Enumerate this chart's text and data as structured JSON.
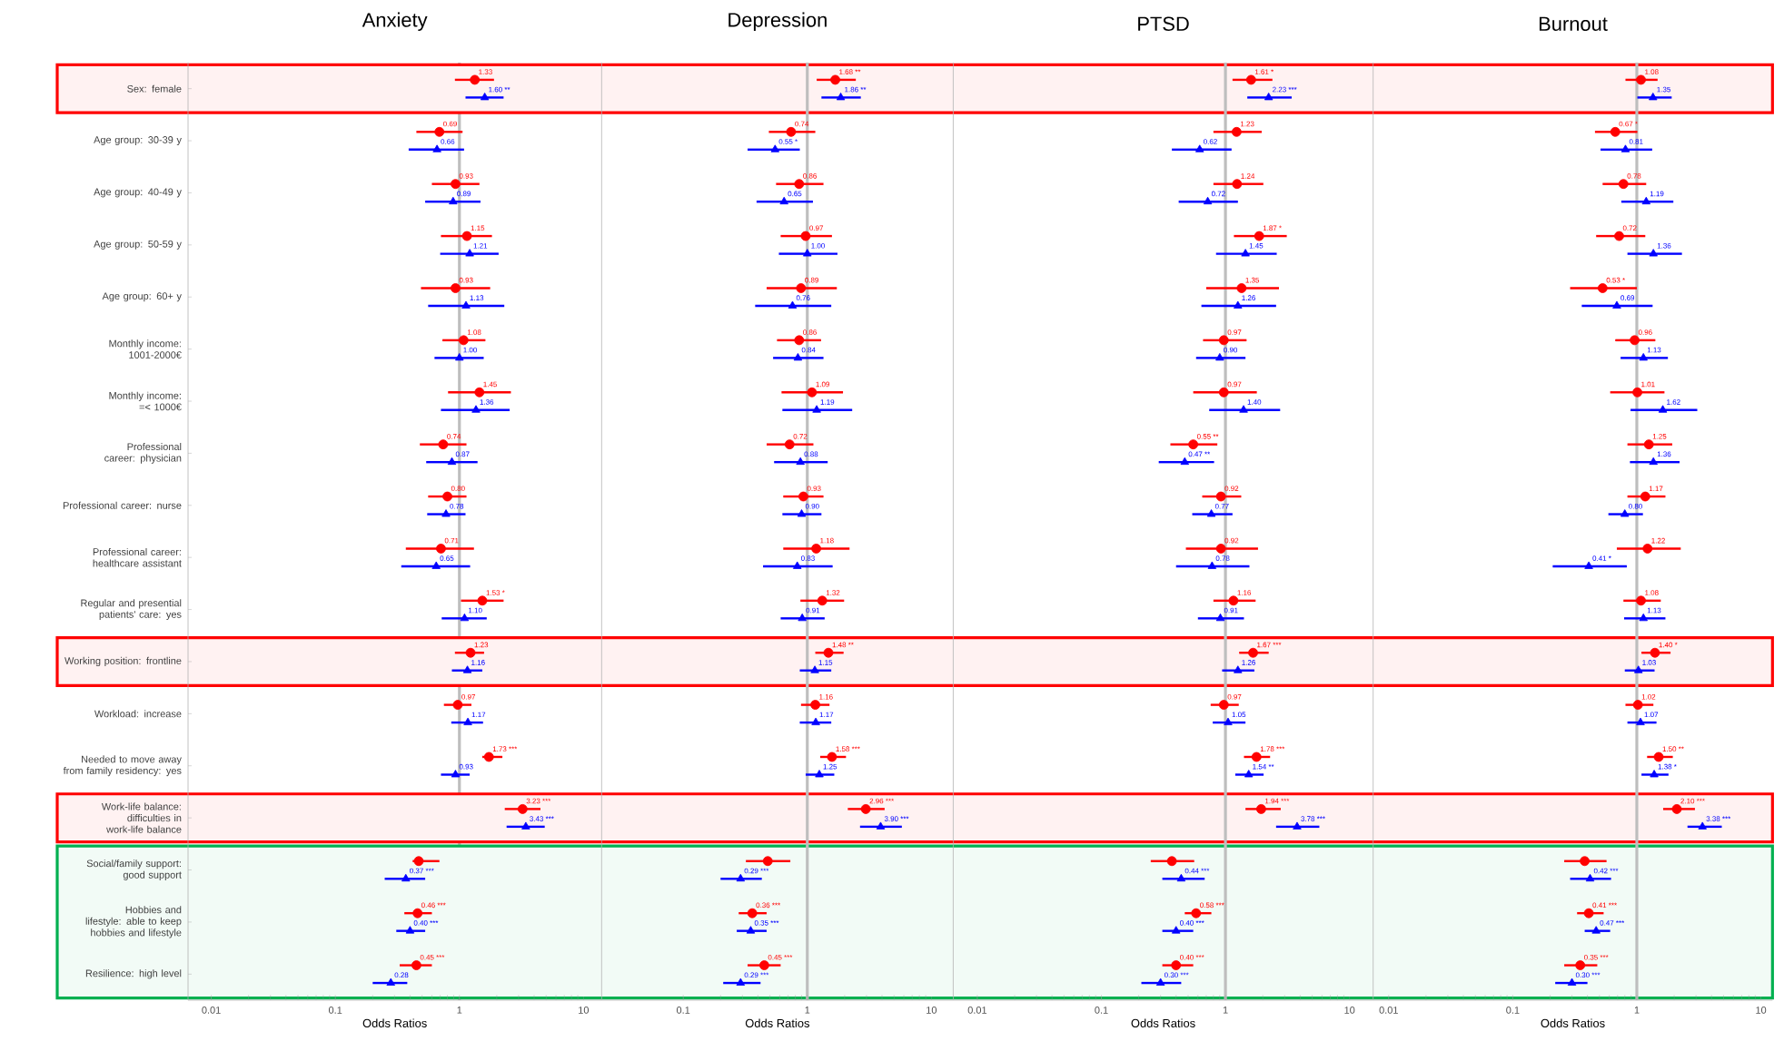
{
  "chart_data": [
    {
      "type": "scatter",
      "orientation": "horizontal",
      "title": "Anxiety",
      "xlabel": "Odds Ratios",
      "log": "x",
      "xlim": [
        0.0065,
        14
      ],
      "xticks": [
        0.01,
        0.1,
        1,
        10
      ],
      "categories": [
        "Sex: female",
        "Age group: 30-39 y",
        "Age group: 40-49 y",
        "Age group: 50-59 y",
        "Age group: 60+ y",
        "Monthly income: 1001-2000€",
        "Monthly income: =< 1000€",
        "Professional career: physician",
        "Professional career: nurse",
        "Professional career: healthcare assistant",
        "Regular and presential patients' care: yes",
        "Working position: frontline",
        "Workload: increase",
        "Needed to move away from family residency: yes",
        "Work-life balance: difficulties in work-life balance",
        "Social/family support: good support",
        "Hobbies and lifestyle: able to keep hobbies and lifestyle",
        "Resilience: high level"
      ],
      "ref_lines": [
        {
          "axis": "x",
          "value": 1,
          "color": "#bebebe"
        }
      ],
      "bands": [
        {
          "axis": "y",
          "from": "Sex: female",
          "to": "Sex: female",
          "color": "#ff0000"
        },
        {
          "axis": "y",
          "from": "Working position: frontline",
          "to": "Working position: frontline",
          "color": "#ff0000"
        },
        {
          "axis": "y",
          "from": "Work-life balance: difficulties in work-life balance",
          "to": "Work-life balance: difficulties in work-life balance",
          "color": "#ff0000"
        },
        {
          "axis": "y",
          "from": "Social/family support: good support",
          "to": "Resilience: high level",
          "color": "#00b050"
        }
      ],
      "series": [
        {
          "color": "#ff0000",
          "marker": "circle",
          "values": [
            1.33,
            0.69,
            0.93,
            1.15,
            0.93,
            1.08,
            1.45,
            0.74,
            0.8,
            0.71,
            1.53,
            1.23,
            0.97,
            1.73,
            3.23,
            0.47,
            0.46,
            0.45
          ],
          "errors": [
            [
              0.92,
              1.9
            ],
            [
              0.45,
              1.06
            ],
            [
              0.6,
              1.45
            ],
            [
              0.71,
              1.83
            ],
            [
              0.49,
              1.77
            ],
            [
              0.73,
              1.62
            ],
            [
              0.81,
              2.6
            ],
            [
              0.48,
              1.14
            ],
            [
              0.56,
              1.14
            ],
            [
              0.37,
              1.31
            ],
            [
              1.03,
              2.27
            ],
            [
              0.92,
              1.58
            ],
            [
              0.75,
              1.25
            ],
            [
              1.53,
              2.22
            ],
            [
              2.32,
              4.5
            ],
            [
              0.42,
              0.69
            ],
            [
              0.36,
              0.6
            ],
            [
              0.33,
              0.6
            ]
          ],
          "value_labels": [
            "1.33",
            "0.69",
            "0.93",
            "1.15",
            "0.93",
            "1.08",
            "1.45",
            "0.74",
            "0.80",
            "0.71",
            "1.53 *",
            "1.23",
            "0.97",
            "1.73 ***",
            "3.23 ***",
            null,
            "0.46 ***",
            "0.45 ***"
          ]
        },
        {
          "color": "#0000ff",
          "marker": "triangle",
          "values": [
            1.6,
            0.66,
            0.89,
            1.21,
            1.13,
            1.0,
            1.36,
            0.87,
            0.78,
            0.65,
            1.1,
            1.16,
            1.17,
            0.93,
            3.43,
            0.37,
            0.4,
            0.28
          ],
          "errors": [
            [
              1.12,
              2.27
            ],
            [
              0.39,
              1.09
            ],
            [
              0.53,
              1.48
            ],
            [
              0.7,
              2.07
            ],
            [
              0.56,
              2.3
            ],
            [
              0.63,
              1.57
            ],
            [
              0.71,
              2.54
            ],
            [
              0.54,
              1.4
            ],
            [
              0.55,
              1.12
            ],
            [
              0.34,
              1.22
            ],
            [
              0.72,
              1.66
            ],
            [
              0.87,
              1.53
            ],
            [
              0.86,
              1.55
            ],
            [
              0.71,
              1.21
            ],
            [
              2.4,
              4.87
            ],
            [
              0.25,
              0.53
            ],
            [
              0.31,
              0.53
            ],
            [
              0.2,
              0.38
            ]
          ],
          "value_labels": [
            "1.60 **",
            "0.66",
            "0.89",
            "1.21",
            "1.13",
            "1.00",
            "1.36",
            "0.87",
            "0.78",
            "0.65",
            "1.10",
            "1.16",
            "1.17",
            "0.93",
            "3.43 ***",
            "0.37 ***",
            "0.40 ***",
            "0.28"
          ]
        }
      ]
    },
    {
      "type": "scatter",
      "orientation": "horizontal",
      "title": "Depression",
      "xlabel": "Odds Ratios",
      "log": "x",
      "xlim": [
        0.022,
        15
      ],
      "xticks": [
        0.1,
        1,
        10
      ],
      "tick_labels": "x",
      "categories": [
        null,
        null,
        null,
        null,
        null,
        null,
        null,
        null,
        null,
        null,
        null,
        null,
        null,
        null,
        null,
        null,
        null,
        null
      ],
      "ref_lines": [
        {
          "axis": "x",
          "value": 1,
          "color": "#bebebe"
        }
      ],
      "series": [
        {
          "color": "#ff0000",
          "marker": "circle",
          "values": [
            1.68,
            0.74,
            0.86,
            0.97,
            0.89,
            0.86,
            1.09,
            0.72,
            0.93,
            1.18,
            1.32,
            1.48,
            1.16,
            1.58,
            2.96,
            0.48,
            0.36,
            0.45
          ],
          "errors": [
            [
              1.19,
              2.46
            ],
            [
              0.49,
              1.16
            ],
            [
              0.56,
              1.35
            ],
            [
              0.61,
              1.58
            ],
            [
              0.47,
              1.73
            ],
            [
              0.57,
              1.29
            ],
            [
              0.62,
              1.94
            ],
            [
              0.47,
              1.12
            ],
            [
              0.64,
              1.35
            ],
            [
              0.64,
              2.19
            ],
            [
              0.88,
              1.98
            ],
            [
              1.16,
              1.96
            ],
            [
              0.89,
              1.51
            ],
            [
              1.27,
              2.05
            ],
            [
              2.12,
              4.2
            ],
            [
              0.32,
              0.73
            ],
            [
              0.28,
              0.47
            ],
            [
              0.33,
              0.61
            ]
          ],
          "value_labels": [
            "1.68 **",
            "0.74",
            "0.86",
            "0.97",
            "0.89",
            "0.86",
            "1.09",
            "0.72",
            "0.93",
            "1.18",
            "1.32",
            "1.48 **",
            "1.16",
            "1.58 ***",
            "2.96 ***",
            null,
            "0.36 ***",
            "0.45 ***"
          ]
        },
        {
          "color": "#0000ff",
          "marker": "triangle",
          "values": [
            1.86,
            0.55,
            0.65,
            1.0,
            0.76,
            0.84,
            1.19,
            0.88,
            0.9,
            0.83,
            0.91,
            1.15,
            1.17,
            1.25,
            3.9,
            0.29,
            0.35,
            0.29
          ],
          "errors": [
            [
              1.3,
              2.7
            ],
            [
              0.33,
              0.87
            ],
            [
              0.39,
              1.11
            ],
            [
              0.59,
              1.75
            ],
            [
              0.38,
              1.56
            ],
            [
              0.53,
              1.35
            ],
            [
              0.63,
              2.3
            ],
            [
              0.54,
              1.46
            ],
            [
              0.63,
              1.3
            ],
            [
              0.44,
              1.6
            ],
            [
              0.61,
              1.38
            ],
            [
              0.87,
              1.56
            ],
            [
              0.87,
              1.56
            ],
            [
              0.97,
              1.65
            ],
            [
              2.66,
              5.78
            ],
            [
              0.2,
              0.43
            ],
            [
              0.27,
              0.47
            ],
            [
              0.21,
              0.42
            ]
          ],
          "value_labels": [
            "1.86 **",
            "0.55 *",
            "0.65",
            "1.00",
            "0.76",
            "0.84",
            "1.19",
            "0.88",
            "0.90",
            "0.83",
            "0.91",
            "1.15",
            "1.17",
            "1.25",
            "3.90 ***",
            "0.29 ***",
            "0.35 ***",
            "0.29 ***"
          ]
        }
      ]
    },
    {
      "type": "scatter",
      "orientation": "horizontal",
      "title": "PTSD",
      "xlabel": "Odds Ratios",
      "log": "x",
      "xlim": [
        0.0064,
        15.5
      ],
      "xticks": [
        0.01,
        0.1,
        1,
        10
      ],
      "tick_labels": "x",
      "categories": [
        null,
        null,
        null,
        null,
        null,
        null,
        null,
        null,
        null,
        null,
        null,
        null,
        null,
        null,
        null,
        null,
        null,
        null
      ],
      "ref_lines": [
        {
          "axis": "x",
          "value": 1,
          "color": "#bebebe"
        }
      ],
      "series": [
        {
          "color": "#ff0000",
          "marker": "circle",
          "values": [
            1.61,
            1.23,
            1.24,
            1.87,
            1.35,
            0.97,
            0.97,
            0.55,
            0.92,
            0.92,
            1.16,
            1.67,
            0.97,
            1.78,
            1.94,
            0.37,
            0.58,
            0.4
          ],
          "errors": [
            [
              1.14,
              2.39
            ],
            [
              0.8,
              1.96
            ],
            [
              0.8,
              2.02
            ],
            [
              1.17,
              3.12
            ],
            [
              0.7,
              2.7
            ],
            [
              0.66,
              1.48
            ],
            [
              0.55,
              1.79
            ],
            [
              0.36,
              0.86
            ],
            [
              0.65,
              1.34
            ],
            [
              0.48,
              1.83
            ],
            [
              0.8,
              1.75
            ],
            [
              1.29,
              2.23
            ],
            [
              0.76,
              1.28
            ],
            [
              1.41,
              2.29
            ],
            [
              1.45,
              2.79
            ],
            [
              0.25,
              0.56
            ],
            [
              0.47,
              0.77
            ],
            [
              0.31,
              0.55
            ]
          ],
          "value_labels": [
            "1.61 *",
            "1.23",
            "1.24",
            "1.87 *",
            "1.35",
            "0.97",
            "0.97",
            "0.55 **",
            "0.92",
            "0.92",
            "1.16",
            "1.67 ***",
            "0.97",
            "1.78 ***",
            "1.94 ***",
            null,
            "0.58 ***",
            "0.40 ***"
          ]
        },
        {
          "color": "#0000ff",
          "marker": "triangle",
          "values": [
            2.23,
            0.62,
            0.72,
            1.45,
            1.26,
            0.9,
            1.4,
            0.47,
            0.77,
            0.78,
            0.91,
            1.26,
            1.05,
            1.54,
            3.78,
            0.44,
            0.4,
            0.3
          ],
          "errors": [
            [
              1.5,
              3.42
            ],
            [
              0.37,
              1.12
            ],
            [
              0.42,
              1.26
            ],
            [
              0.84,
              2.59
            ],
            [
              0.64,
              2.56
            ],
            [
              0.58,
              1.45
            ],
            [
              0.74,
              2.76
            ],
            [
              0.29,
              0.81
            ],
            [
              0.54,
              1.14
            ],
            [
              0.4,
              1.56
            ],
            [
              0.6,
              1.41
            ],
            [
              0.94,
              1.71
            ],
            [
              0.79,
              1.45
            ],
            [
              1.2,
              2.03
            ],
            [
              2.56,
              5.71
            ],
            [
              0.31,
              0.68
            ],
            [
              0.31,
              0.55
            ],
            [
              0.21,
              0.44
            ]
          ],
          "value_labels": [
            "2.23 ***",
            "0.62",
            "0.72",
            "1.45",
            "1.26",
            "0.90",
            "1.40",
            "0.47 **",
            "0.77",
            "0.78",
            "0.91",
            "1.26",
            "1.05",
            "1.54 **",
            "3.78 ***",
            "0.44 ***",
            "0.40 ***",
            "0.30 ***"
          ]
        }
      ]
    },
    {
      "type": "scatter",
      "orientation": "horizontal",
      "title": "Burnout",
      "xlabel": "Odds Ratios",
      "log": "x",
      "xlim": [
        0.0075,
        12.4
      ],
      "xticks": [
        0.01,
        0.1,
        1,
        10
      ],
      "tick_labels": "x",
      "categories": [
        null,
        null,
        null,
        null,
        null,
        null,
        null,
        null,
        null,
        null,
        null,
        null,
        null,
        null,
        null,
        null,
        null,
        null
      ],
      "ref_lines": [
        {
          "axis": "x",
          "value": 1,
          "color": "#bebebe"
        }
      ],
      "series": [
        {
          "color": "#ff0000",
          "marker": "circle",
          "values": [
            1.08,
            0.67,
            0.78,
            0.72,
            0.53,
            0.96,
            1.01,
            1.25,
            1.17,
            1.22,
            1.08,
            1.4,
            1.02,
            1.5,
            2.1,
            0.38,
            0.41,
            0.35
          ],
          "errors": [
            [
              0.81,
              1.47
            ],
            [
              0.46,
              1.01
            ],
            [
              0.53,
              1.19
            ],
            [
              0.47,
              1.17
            ],
            [
              0.29,
              1.0
            ],
            [
              0.67,
              1.41
            ],
            [
              0.61,
              1.67
            ],
            [
              0.84,
              1.93
            ],
            [
              0.84,
              1.7
            ],
            [
              0.69,
              2.26
            ],
            [
              0.78,
              1.56
            ],
            [
              1.09,
              1.87
            ],
            [
              0.81,
              1.36
            ],
            [
              1.21,
              1.95
            ],
            [
              1.63,
              2.94
            ],
            [
              0.26,
              0.57
            ],
            [
              0.33,
              0.54
            ],
            [
              0.26,
              0.48
            ]
          ],
          "value_labels": [
            "1.08",
            "0.67 *",
            "0.78",
            "0.72",
            "0.53 *",
            "0.96",
            "1.01",
            "1.25",
            "1.17",
            "1.22",
            "1.08",
            "1.40 *",
            "1.02",
            "1.50 **",
            "2.10 ***",
            null,
            "0.41 ***",
            "0.35 ***"
          ]
        },
        {
          "color": "#0000ff",
          "marker": "triangle",
          "values": [
            1.35,
            0.81,
            1.19,
            1.36,
            0.69,
            1.13,
            1.62,
            1.36,
            0.8,
            0.41,
            1.13,
            1.03,
            1.07,
            1.38,
            3.38,
            0.42,
            0.47,
            0.3
          ],
          "errors": [
            [
              1.01,
              1.91
            ],
            [
              0.51,
              1.33
            ],
            [
              0.75,
              1.97
            ],
            [
              0.84,
              2.31
            ],
            [
              0.36,
              1.34
            ],
            [
              0.74,
              1.78
            ],
            [
              0.89,
              3.07
            ],
            [
              0.88,
              2.21
            ],
            [
              0.59,
              1.12
            ],
            [
              0.21,
              0.83
            ],
            [
              0.79,
              1.7
            ],
            [
              0.8,
              1.39
            ],
            [
              0.84,
              1.44
            ],
            [
              1.09,
              1.8
            ],
            [
              2.56,
              4.84
            ],
            [
              0.29,
              0.62
            ],
            [
              0.38,
              0.61
            ],
            [
              0.22,
              0.4
            ]
          ],
          "value_labels": [
            "1.35",
            "0.81",
            "1.19",
            "1.36",
            "0.69",
            "1.13",
            "1.62",
            "1.36",
            "0.80",
            "0.41 *",
            "1.13",
            "1.03",
            "1.07",
            "1.38 *",
            "3.38 ***",
            "0.42 ***",
            "0.47 ***",
            "0.30 ***"
          ]
        }
      ]
    }
  ]
}
